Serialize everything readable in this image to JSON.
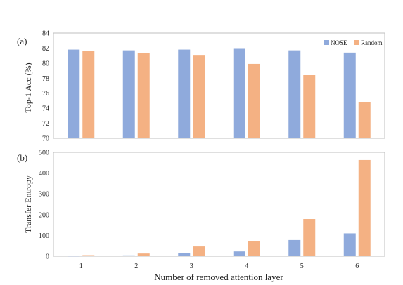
{
  "chart_data": [
    {
      "panel_label": "(a)",
      "type": "bar",
      "categories": [
        "1",
        "2",
        "3",
        "4",
        "5",
        "6"
      ],
      "series": [
        {
          "name": "NOSE",
          "values": [
            81.8,
            81.7,
            81.8,
            81.9,
            81.7,
            81.4
          ]
        },
        {
          "name": "Random",
          "values": [
            81.6,
            81.3,
            81.0,
            79.9,
            78.4,
            74.8
          ]
        }
      ],
      "ylabel": "Top-1 Acc (%)",
      "ylim": [
        70,
        84
      ],
      "yticks": [
        "70",
        "72",
        "74",
        "76",
        "78",
        "80",
        "82",
        "84"
      ],
      "legend": "top-right",
      "grid": false
    },
    {
      "panel_label": "(b)",
      "type": "bar",
      "categories": [
        "1",
        "2",
        "3",
        "4",
        "5",
        "6"
      ],
      "series": [
        {
          "name": "NOSE",
          "values": [
            1,
            4,
            15,
            23,
            78,
            110
          ]
        },
        {
          "name": "Random",
          "values": [
            5,
            13,
            47,
            73,
            179,
            463
          ]
        }
      ],
      "ylabel": "Transfer Entropy",
      "xlabel": "Number of removed attention layer",
      "ylim": [
        0,
        500
      ],
      "yticks": [
        "0",
        "100",
        "200",
        "300",
        "400",
        "500"
      ],
      "grid": false
    }
  ],
  "colors": {
    "NOSE": "#8faadc",
    "Random": "#f4b183",
    "frame": "#bfbfbf"
  }
}
